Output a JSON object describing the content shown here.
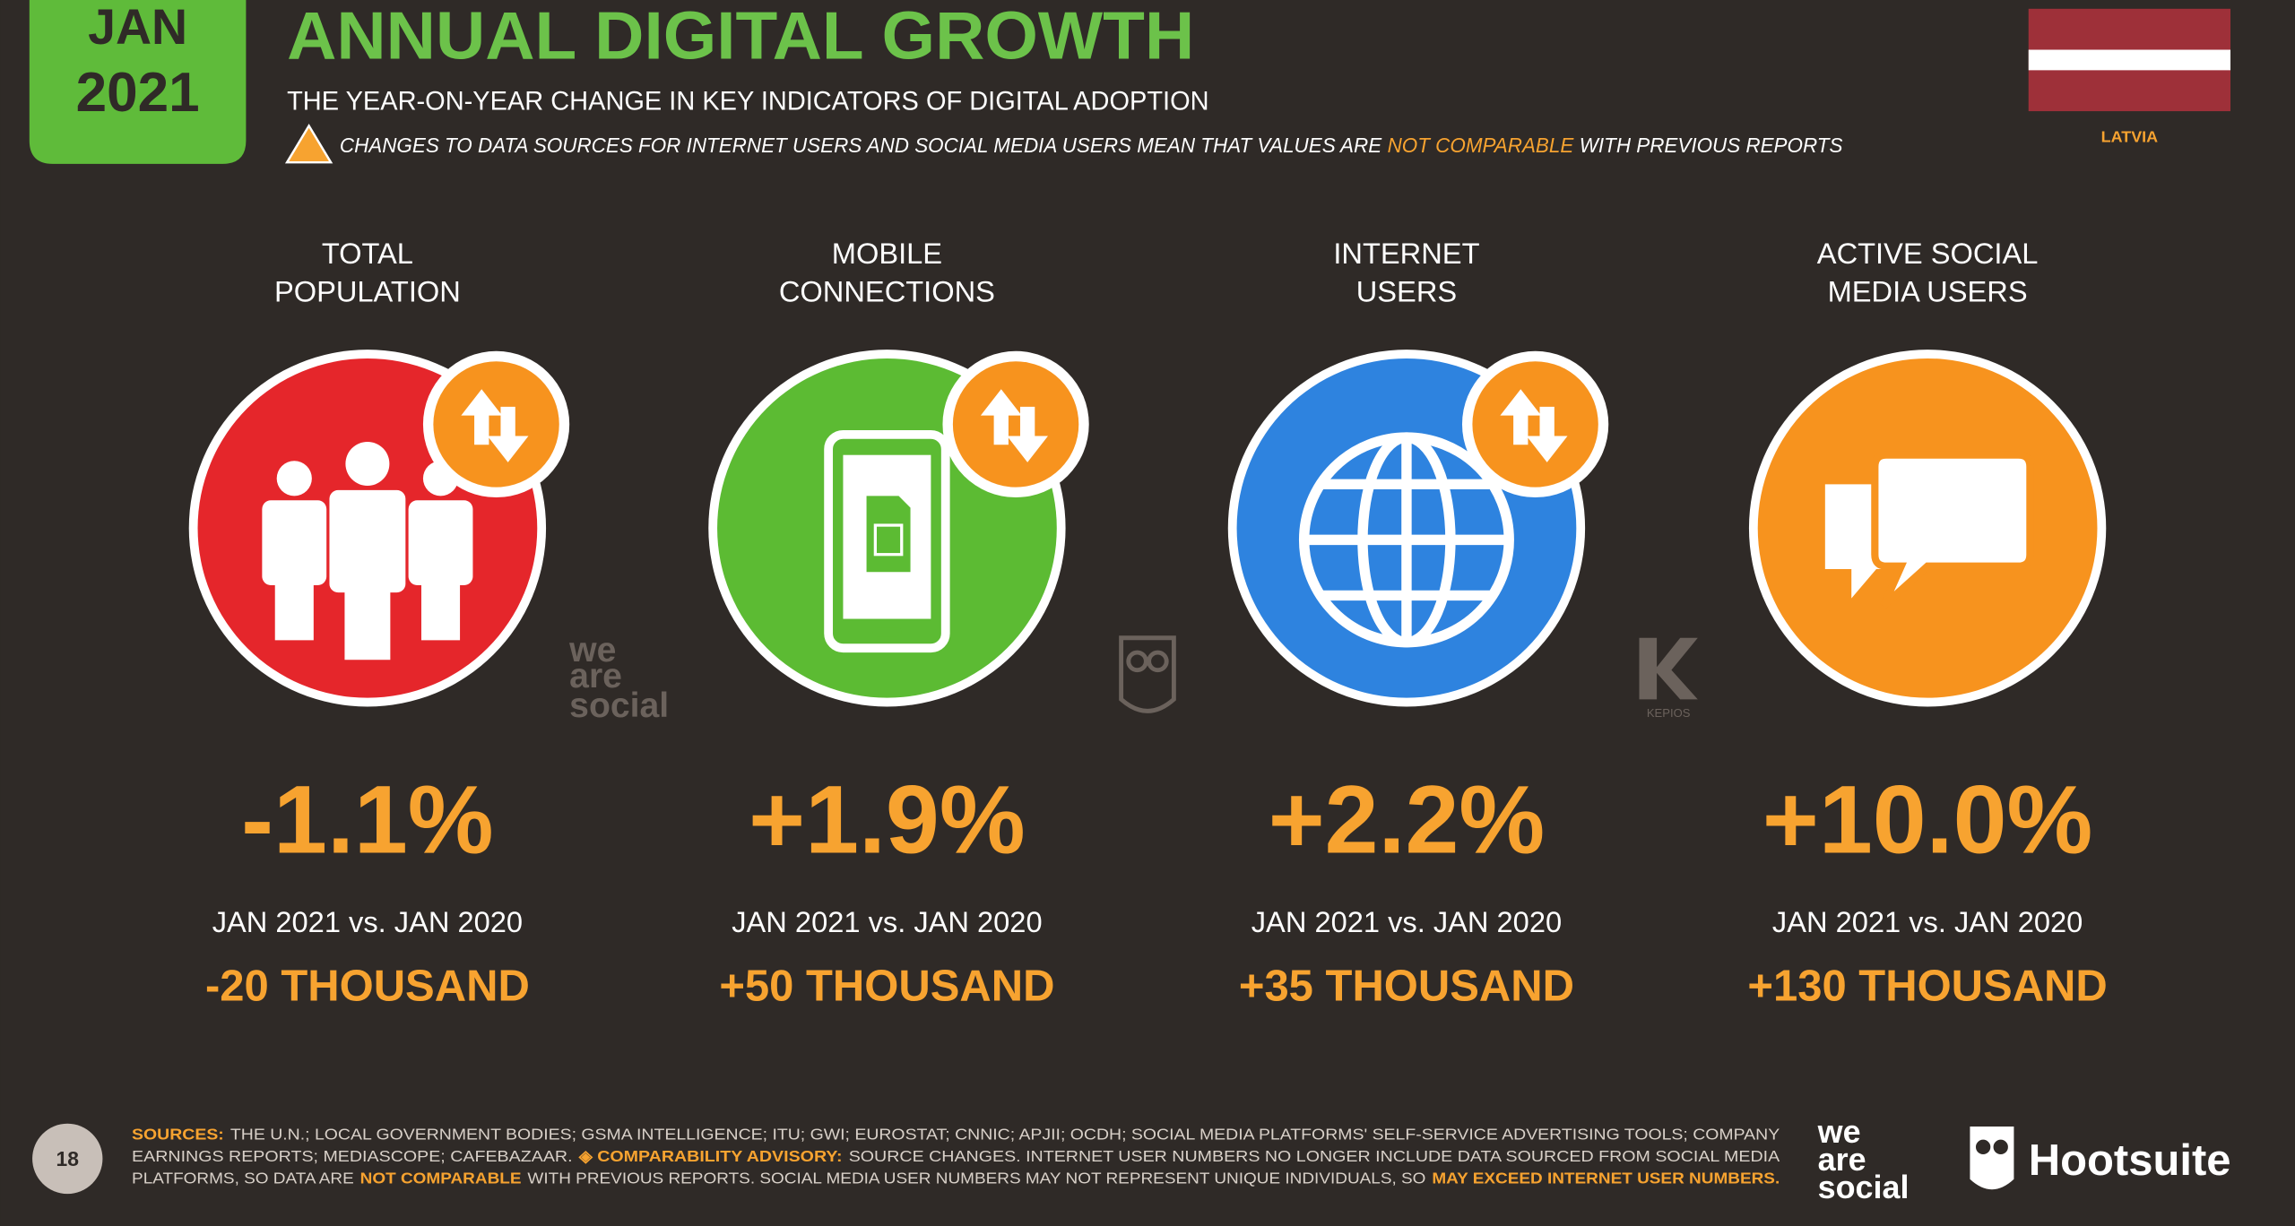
{
  "badge": {
    "month": "JAN",
    "year": "2021"
  },
  "header": {
    "title": "ANNUAL DIGITAL GROWTH",
    "subtitle": "THE YEAR-ON-YEAR CHANGE IN KEY INDICATORS OF DIGITAL ADOPTION",
    "warning": [
      {
        "text": "CHANGES TO DATA SOURCES FOR INTERNET USERS AND SOCIAL MEDIA USERS MEAN THAT VALUES ARE",
        "highlight": false
      },
      {
        "text": "NOT COMPARABLE",
        "highlight": true
      },
      {
        "text": "WITH PREVIOUS REPORTS",
        "highlight": false
      }
    ]
  },
  "country": "LATVIA",
  "cards": [
    {
      "label_lines": [
        "TOTAL",
        "POPULATION"
      ],
      "change": "-1.1%",
      "comparison": "JAN 2021 vs. JAN 2020",
      "absolute": "-20 THOUSAND",
      "color": "#e5262b"
    },
    {
      "label_lines": [
        "MOBILE",
        "CONNECTIONS"
      ],
      "change": "+1.9%",
      "comparison": "JAN 2021 vs. JAN 2020",
      "absolute": "+50 THOUSAND",
      "color": "#5cbb33"
    },
    {
      "label_lines": [
        "INTERNET",
        "USERS"
      ],
      "change": "+2.2%",
      "comparison": "JAN 2021 vs. JAN 2020",
      "absolute": "+35 THOUSAND",
      "color": "#2e83df"
    },
    {
      "label_lines": [
        "ACTIVE SOCIAL",
        "MEDIA USERS"
      ],
      "change": "+10.0%",
      "comparison": "JAN 2021 vs. JAN 2020",
      "absolute": "+130 THOUSAND",
      "color": "#f7931e"
    }
  ],
  "watermarks": {
    "brand_lines": [
      "we",
      "are",
      "social"
    ],
    "kepios": "KEPIOS"
  },
  "footer": {
    "page_number": "18",
    "lines": [
      [
        {
          "text": "SOURCES:",
          "highlight": true
        },
        {
          "text": "THE U.N.; LOCAL GOVERNMENT BODIES; GSMA INTELLIGENCE; ITU; GWI; EUROSTAT; CNNIC; APJII; OCDH; SOCIAL MEDIA PLATFORMS' SELF-SERVICE ADVERTISING TOOLS; COMPANY",
          "highlight": false
        }
      ],
      [
        {
          "text": "EARNINGS REPORTS; MEDIASCOPE; CAFEBAZAAR.",
          "highlight": false
        },
        {
          "text": "◈ COMPARABILITY ADVISORY:",
          "highlight": true
        },
        {
          "text": "SOURCE CHANGES. INTERNET USER NUMBERS NO LONGER INCLUDE DATA SOURCED FROM SOCIAL MEDIA",
          "highlight": false
        }
      ],
      [
        {
          "text": "PLATFORMS, SO DATA ARE",
          "highlight": false
        },
        {
          "text": "NOT COMPARABLE",
          "highlight": true
        },
        {
          "text": "WITH PREVIOUS REPORTS. SOCIAL MEDIA USER NUMBERS MAY NOT REPRESENT UNIQUE INDIVIDUALS, SO",
          "highlight": false
        },
        {
          "text": "MAY EXCEED INTERNET USER NUMBERS.",
          "highlight": true
        }
      ]
    ],
    "brand_lines": [
      "we",
      "are",
      "social"
    ],
    "hootsuite": "Hootsuite"
  }
}
